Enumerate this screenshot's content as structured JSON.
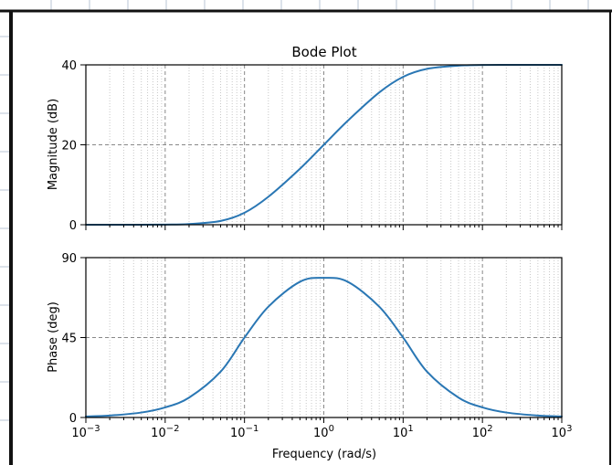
{
  "chart_data": {
    "type": "line",
    "title": "Bode Plot",
    "xlabel": "Frequency (rad/s)",
    "x_scale": "log",
    "xlim": [
      0.001,
      1000
    ],
    "x_ticks": [
      {
        "value": 0.001,
        "label": "10",
        "exp": "−3"
      },
      {
        "value": 0.01,
        "label": "10",
        "exp": "−2"
      },
      {
        "value": 0.1,
        "label": "10",
        "exp": "−1"
      },
      {
        "value": 1,
        "label": "10",
        "exp": "0"
      },
      {
        "value": 10,
        "label": "10",
        "exp": "1"
      },
      {
        "value": 100,
        "label": "10",
        "exp": "2"
      },
      {
        "value": 1000,
        "label": "10",
        "exp": "3"
      }
    ],
    "grid": true,
    "line_color": "#2a77b4",
    "panels": [
      {
        "ylabel": "Magnitude (dB)",
        "ylim": [
          0,
          40
        ],
        "y_ticks": [
          0,
          20,
          40
        ],
        "series": [
          {
            "x": [
              0.001,
              0.002,
              0.005,
              0.01,
              0.02,
              0.05,
              0.1,
              0.2,
              0.5,
              1,
              2,
              5,
              10,
              20,
              50,
              100,
              200,
              500,
              1000
            ],
            "y": [
              0,
              0,
              0.01,
              0.04,
              0.17,
              0.94,
              3.0,
              7.0,
              14.0,
              20.0,
              26.0,
              33.1,
              37.0,
              39.0,
              39.8,
              39.96,
              39.99,
              40.0,
              40.0
            ]
          }
        ]
      },
      {
        "ylabel": "Phase (deg)",
        "ylim": [
          0,
          90
        ],
        "y_ticks": [
          0,
          45,
          90
        ],
        "series": [
          {
            "x": [
              0.001,
              0.002,
              0.005,
              0.01,
              0.02,
              0.05,
              0.1,
              0.2,
              0.5,
              1,
              2,
              5,
              10,
              20,
              50,
              100,
              200,
              500,
              1000
            ],
            "y": [
              0.6,
              1.1,
              2.8,
              5.7,
              11.2,
              25.8,
              45.0,
              62.4,
              76.4,
              78.6,
              76.4,
              62.4,
              45.0,
              25.8,
              11.2,
              5.7,
              2.8,
              1.1,
              0.6
            ]
          }
        ]
      }
    ]
  }
}
